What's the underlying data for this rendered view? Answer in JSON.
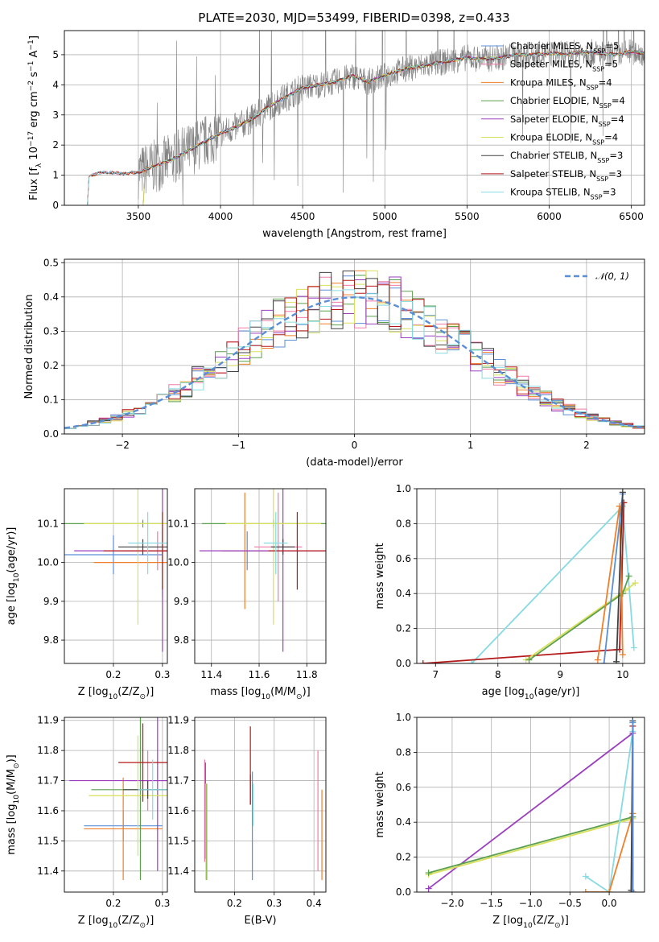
{
  "figure": {
    "title": "PLATE=2030, MJD=53499, FIBERID=0398, z=0.433"
  },
  "colors": {
    "Chabrier MILES": "#5b8fd6",
    "Salpeter MILES": "#f07aa8",
    "Kroupa MILES": "#ef7f2a",
    "Chabrier ELODIE": "#5aa04d",
    "Salpeter ELODIE": "#9b3fbf",
    "Kroupa ELODIE": "#d9e05a",
    "Chabrier STELIB": "#404040",
    "Salpeter STELIB": "#b51a1a",
    "Kroupa STELIB": "#86dbe2",
    "data": "#808080",
    "normal": "#5a8fd8"
  },
  "chart_data": [
    {
      "type": "line",
      "id": "spectrum",
      "title": "PLATE=2030, MJD=53499, FIBERID=0398, z=0.433",
      "xlabel": "wavelength [Angstrom, rest frame]",
      "ylabel": "Flux [f_λ 10^-17 erg cm^-2 s^-1 A^-1]",
      "xlim": [
        3050,
        6580
      ],
      "ylim": [
        0,
        5.8
      ],
      "xticks": [
        3500,
        4000,
        4500,
        5000,
        5500,
        6000,
        6500
      ],
      "yticks": [
        0,
        1,
        2,
        3,
        4,
        5
      ],
      "legend_position": "top-right",
      "legend": [
        "Chabrier MILES, N_SSP=5",
        "Salpeter MILES, N_SSP=5",
        "Kroupa MILES, N_SSP=4",
        "Chabrier ELODIE, N_SSP=4",
        "Salpeter ELODIE, N_SSP=4",
        "Kroupa ELODIE, N_SSP=4",
        "Chabrier STELIB, N_SSP=3",
        "Salpeter STELIB, N_SSP=3",
        "Kroupa STELIB, N_SSP=3"
      ],
      "model_x": [
        3180,
        3200,
        3250,
        3300,
        3400,
        3500,
        3600,
        3700,
        3800,
        3900,
        4000,
        4100,
        4200,
        4300,
        4400,
        4500,
        4600,
        4700,
        4800,
        4900,
        5000,
        5100,
        5200,
        5300,
        5400,
        5500,
        5600,
        5700,
        5800,
        5900,
        6000,
        6100,
        6200,
        6300,
        6400,
        6500,
        6580
      ],
      "model_y": [
        0,
        0.95,
        1.05,
        1.1,
        1.05,
        1.1,
        1.3,
        1.5,
        1.8,
        2.1,
        2.4,
        2.6,
        2.9,
        3.3,
        3.6,
        3.9,
        4.0,
        4.1,
        4.3,
        4.1,
        4.3,
        4.5,
        4.6,
        4.7,
        4.8,
        4.9,
        4.85,
        4.9,
        5.0,
        5.0,
        5.05,
        5.0,
        5.1,
        5.05,
        5.0,
        5.1,
        5.05
      ],
      "data_range": [
        3500,
        6580
      ]
    },
    {
      "type": "histogram",
      "id": "residuals",
      "xlabel": "(data-model)/error",
      "ylabel": "Normed distribution",
      "xlim": [
        -2.5,
        2.5
      ],
      "ylim": [
        0,
        0.51
      ],
      "xticks": [
        -2,
        -1,
        0,
        1,
        2
      ],
      "yticks": [
        0.0,
        0.1,
        0.2,
        0.3,
        0.4,
        0.5
      ],
      "legend": [
        "𝒩(0, 1)"
      ],
      "legend_position": "top-right",
      "bin_width": 0.1
    },
    {
      "type": "errorbar",
      "id": "age-vs-Z",
      "xlabel": "Z [log10(Z/Z⊙)]",
      "ylabel": "age  [log10(age/yr)]",
      "xlim": [
        0.1,
        0.31
      ],
      "ylim": [
        9.74,
        10.19
      ],
      "xticks": [
        0.2,
        0.3
      ],
      "yticks": [
        9.8,
        9.9,
        10.0,
        10.1
      ],
      "points": [
        {
          "model": "Chabrier MILES",
          "x": 0.2,
          "xerr": 0.1,
          "y": 10.02,
          "yerr": 0.05
        },
        {
          "model": "Salpeter MILES",
          "x": 0.29,
          "xerr": 0.07,
          "y": 10.03,
          "yerr": 0.05
        },
        {
          "model": "Kroupa MILES",
          "x": 0.3,
          "xerr": 0.14,
          "y": 10.0,
          "yerr": 0.09
        },
        {
          "model": "Chabrier ELODIE",
          "x": 0.26,
          "xerr": 0.16,
          "y": 10.1,
          "yerr": 0.01
        },
        {
          "model": "Salpeter ELODIE",
          "x": 0.3,
          "xerr": 0.18,
          "y": 10.03,
          "yerr": 0.26
        },
        {
          "model": "Kroupa ELODIE",
          "x": 0.25,
          "xerr": 0.11,
          "y": 10.1,
          "yerr": 0.26
        },
        {
          "model": "Chabrier STELIB",
          "x": 0.26,
          "xerr": 0.05,
          "y": 10.04,
          "yerr": 0.02
        },
        {
          "model": "Salpeter STELIB",
          "x": 0.3,
          "xerr": 0.12,
          "y": 10.03,
          "yerr": 0.1
        },
        {
          "model": "Kroupa STELIB",
          "x": 0.27,
          "xerr": 0.04,
          "y": 10.05,
          "yerr": 0.08
        }
      ]
    },
    {
      "type": "errorbar",
      "id": "age-vs-mass",
      "xlabel": "mass [log10(M/M⊙)]",
      "ylabel": "",
      "xlim": [
        11.33,
        11.88
      ],
      "ylim": [
        9.74,
        10.19
      ],
      "xticks": [
        11.4,
        11.6,
        11.8
      ],
      "yticks": [
        9.8,
        9.9,
        10.0,
        10.1
      ],
      "points": [
        {
          "model": "Chabrier MILES",
          "x": 11.55,
          "xerr": 0.1,
          "y": 10.03,
          "yerr": 0.05
        },
        {
          "model": "Salpeter MILES",
          "x": 11.68,
          "xerr": 0.1,
          "y": 10.04,
          "yerr": 0.14
        },
        {
          "model": "Kroupa MILES",
          "x": 11.54,
          "xerr": 0.1,
          "y": 10.03,
          "yerr": 0.15
        },
        {
          "model": "Chabrier ELODIE",
          "x": 11.66,
          "xerr": 0.3,
          "y": 10.1,
          "yerr": 0.01
        },
        {
          "model": "Salpeter ELODIE",
          "x": 11.7,
          "xerr": 0.35,
          "y": 10.03,
          "yerr": 0.26
        },
        {
          "model": "Kroupa ELODIE",
          "x": 11.66,
          "xerr": 0.2,
          "y": 10.1,
          "yerr": 0.26
        },
        {
          "model": "Chabrier STELIB",
          "x": 11.7,
          "xerr": 0.05,
          "y": 10.04,
          "yerr": 0.02
        },
        {
          "model": "Salpeter STELIB",
          "x": 11.76,
          "xerr": 0.12,
          "y": 10.03,
          "yerr": 0.1
        },
        {
          "model": "Kroupa STELIB",
          "x": 11.67,
          "xerr": 0.05,
          "y": 10.05,
          "yerr": 0.08
        }
      ]
    },
    {
      "type": "line",
      "id": "weight-vs-age",
      "xlabel": "age  [log10(age/yr)]",
      "ylabel": "mass weight",
      "xlim": [
        6.7,
        10.35
      ],
      "ylim": [
        0,
        1.0
      ],
      "xticks": [
        7,
        8,
        9,
        10
      ],
      "yticks": [
        0.0,
        0.2,
        0.4,
        0.6,
        0.8,
        1.0
      ],
      "series": [
        {
          "model": "Kroupa STELIB",
          "x": [
            7.58,
            10.0,
            10.18
          ],
          "y": [
            0.0,
            0.9,
            0.09
          ]
        },
        {
          "model": "Salpeter STELIB",
          "x": [
            6.8,
            9.95,
            10.02
          ],
          "y": [
            0.0,
            0.08,
            0.92
          ]
        },
        {
          "model": "Kroupa ELODIE",
          "x": [
            8.45,
            10.05,
            10.2
          ],
          "y": [
            0.02,
            0.42,
            0.46
          ]
        },
        {
          "model": "Chabrier ELODIE",
          "x": [
            8.5,
            10.0,
            10.1
          ],
          "y": [
            0.02,
            0.4,
            0.5
          ]
        },
        {
          "model": "Kroupa MILES",
          "x": [
            9.6,
            9.95,
            10.0
          ],
          "y": [
            0.02,
            0.9,
            0.05
          ]
        },
        {
          "model": "Chabrier MILES",
          "x": [
            9.7,
            10.0
          ],
          "y": [
            0.0,
            0.97
          ]
        },
        {
          "model": "Chabrier STELIB",
          "x": [
            9.9,
            10.0
          ],
          "y": [
            0.01,
            0.98
          ]
        }
      ]
    },
    {
      "type": "errorbar",
      "id": "mass-vs-Z",
      "xlabel": "Z [log10(Z/Z⊙)]",
      "ylabel": "mass [log10(M/M⊙)]",
      "xlim": [
        0.1,
        0.31
      ],
      "ylim": [
        11.33,
        11.91
      ],
      "xticks": [
        0.2,
        0.3
      ],
      "yticks": [
        11.4,
        11.5,
        11.6,
        11.7,
        11.8,
        11.9
      ],
      "points": [
        {
          "model": "Chabrier MILES",
          "x": 0.22,
          "xerr": 0.08,
          "y": 11.55,
          "yerr": 0.05
        },
        {
          "model": "Salpeter MILES",
          "x": 0.27,
          "xerr": 0.04,
          "y": 11.7,
          "yerr": 0.1
        },
        {
          "model": "Kroupa MILES",
          "x": 0.22,
          "xerr": 0.08,
          "y": 11.54,
          "yerr": 0.17
        },
        {
          "model": "Chabrier ELODIE",
          "x": 0.255,
          "xerr": 0.1,
          "y": 11.67,
          "yerr": 0.3
        },
        {
          "model": "Salpeter ELODIE",
          "x": 0.29,
          "xerr": 0.18,
          "y": 11.7,
          "yerr": 0.3
        },
        {
          "model": "Kroupa ELODIE",
          "x": 0.25,
          "xerr": 0.1,
          "y": 11.65,
          "yerr": 0.2
        },
        {
          "model": "Chabrier STELIB",
          "x": 0.27,
          "xerr": 0.05,
          "y": 11.67,
          "yerr": 0.03
        },
        {
          "model": "Salpeter STELIB",
          "x": 0.26,
          "xerr": 0.05,
          "y": 11.76,
          "yerr": 0.13
        },
        {
          "model": "Kroupa STELIB",
          "x": 0.28,
          "xerr": 0.03,
          "y": 11.67,
          "yerr": 0.1
        }
      ]
    },
    {
      "type": "errorbar",
      "id": "mass-vs-EBV",
      "xlabel": "E(B-V)",
      "ylabel": "",
      "xlim": [
        0.1,
        0.43
      ],
      "ylim": [
        11.33,
        11.91
      ],
      "xticks": [
        0.2,
        0.3,
        0.4
      ],
      "yticks": [
        11.4,
        11.5,
        11.6,
        11.7,
        11.8,
        11.9
      ],
      "points": [
        {
          "model": "Chabrier MILES",
          "x": 0.245,
          "y": 11.55,
          "yerr": 0.18
        },
        {
          "model": "Salpeter MILES",
          "x": 0.125,
          "y": 11.6,
          "yerr": 0.17
        },
        {
          "model": "Kroupa MILES",
          "x": 0.42,
          "y": 11.52,
          "yerr": 0.15
        },
        {
          "model": "Chabrier ELODIE",
          "x": 0.13,
          "y": 11.53,
          "yerr": 0.16
        },
        {
          "model": "Salpeter ELODIE",
          "x": 0.127,
          "y": 11.6,
          "yerr": 0.16
        },
        {
          "model": "Kroupa ELODIE",
          "x": 0.128,
          "y": 11.53,
          "yerr": 0.16
        },
        {
          "model": "Chabrier STELIB",
          "x": 0.24,
          "y": 11.67,
          "yerr": 0.05
        },
        {
          "model": "Salpeter STELIB",
          "x": 0.24,
          "y": 11.75,
          "yerr": 0.13
        },
        {
          "model": "Kroupa STELIB",
          "x": 0.247,
          "y": 11.62,
          "yerr": 0.07
        },
        {
          "model": "Salpeter MILES",
          "x": 0.41,
          "y": 11.6,
          "yerr": 0.2
        }
      ]
    },
    {
      "type": "line",
      "id": "weight-vs-Z",
      "xlabel": "Z [log10(Z/Z⊙)]",
      "ylabel": "mass weight",
      "xlim": [
        -2.45,
        0.45
      ],
      "ylim": [
        0,
        1.0
      ],
      "xticks": [
        -2.0,
        -1.5,
        -1.0,
        -0.5,
        0.0
      ],
      "yticks": [
        0.0,
        0.2,
        0.4,
        0.6,
        0.8,
        1.0
      ],
      "series": [
        {
          "model": "Salpeter ELODIE",
          "x": [
            -2.3,
            0.3
          ],
          "y": [
            0.02,
            0.91
          ]
        },
        {
          "model": "Kroupa ELODIE",
          "x": [
            -2.3,
            0.3
          ],
          "y": [
            0.1,
            0.42
          ]
        },
        {
          "model": "Chabrier ELODIE",
          "x": [
            -2.3,
            0.3
          ],
          "y": [
            0.11,
            0.43
          ]
        },
        {
          "model": "Kroupa STELIB",
          "x": [
            -0.3,
            0.0,
            0.3
          ],
          "y": [
            0.09,
            0.0,
            0.92
          ]
        },
        {
          "model": "Kroupa MILES",
          "x": [
            -0.3,
            0.0,
            0.3
          ],
          "y": [
            0.0,
            0.0,
            0.45
          ]
        },
        {
          "model": "Salpeter STELIB",
          "x": [
            0.3,
            0.3
          ],
          "y": [
            0.0,
            0.95
          ]
        },
        {
          "model": "Chabrier STELIB",
          "x": [
            0.28,
            0.3
          ],
          "y": [
            0.01,
            0.98
          ]
        },
        {
          "model": "Chabrier MILES",
          "x": [
            0.3,
            0.3
          ],
          "y": [
            0.0,
            0.97
          ]
        }
      ]
    }
  ]
}
